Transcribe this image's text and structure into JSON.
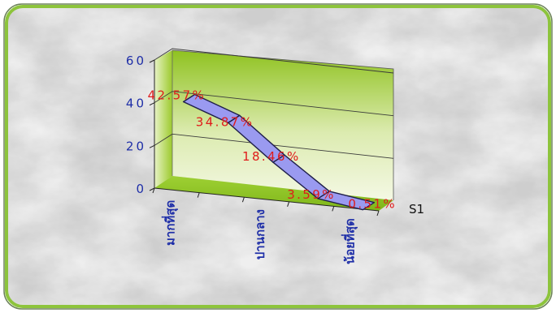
{
  "chart_data": {
    "type": "line",
    "categories": [
      "มากที่สุด",
      "",
      "ปานกลาง",
      "",
      "น้อยที่สุด"
    ],
    "series": [
      {
        "name": "S1",
        "values": [
          42.57,
          34.87,
          18.46,
          3.59,
          0.51
        ]
      }
    ],
    "data_labels": [
      "42.57%",
      "34.87%",
      "18.46%",
      "3.59%",
      "0.51%"
    ],
    "yticks": [
      "0",
      "20",
      "40",
      "60"
    ],
    "ylim": [
      0,
      60
    ],
    "grid": true,
    "legend": "right",
    "title": "",
    "xlabel": "",
    "ylabel": ""
  },
  "colors": {
    "frame_border": "#8dc43c",
    "line_fill": "#9a9af0",
    "line_stroke": "#1f1f4a",
    "tick_label": "#1f2fa8",
    "data_label": "#e01b1b",
    "wall_top": "#8fc21f",
    "wall_bottom": "#f4f8e4"
  }
}
